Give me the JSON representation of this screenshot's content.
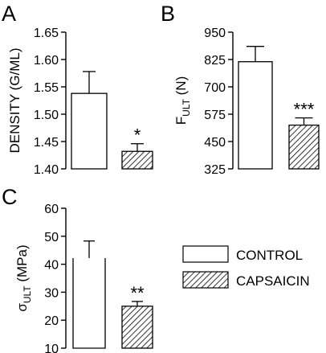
{
  "chart_data": [
    {
      "type": "bar",
      "panel": "A",
      "ylabel": "DENSITY (G/ML)",
      "ylim": [
        1.4,
        1.65
      ],
      "yticks": [
        "1.40",
        "1.45",
        "1.50",
        "1.55",
        "1.60",
        "1.65"
      ],
      "categories": [
        "CONTROL",
        "CAPSAICIN"
      ],
      "values": [
        1.538,
        1.432
      ],
      "errors": [
        0.04,
        0.014
      ],
      "significance": [
        "",
        "*"
      ]
    },
    {
      "type": "bar",
      "panel": "B",
      "ylabel_main": "F",
      "ylabel_sub": "ULT",
      "ylabel_unit": " (N)",
      "ylim": [
        325,
        950
      ],
      "yticks": [
        "325",
        "450",
        "575",
        "700",
        "825",
        "950"
      ],
      "categories": [
        "CONTROL",
        "CAPSAICIN"
      ],
      "values": [
        815,
        525
      ],
      "errors": [
        70,
        33
      ],
      "significance": [
        "",
        "***"
      ]
    },
    {
      "type": "bar",
      "panel": "C",
      "ylabel_main": "σ",
      "ylabel_sub": "ULT",
      "ylabel_unit": " (MPa)",
      "ylim": [
        10,
        60
      ],
      "yticks": [
        "10",
        "20",
        "30",
        "40",
        "50",
        "60"
      ],
      "categories": [
        "CONTROL",
        "CAPSAICIN"
      ],
      "values": [
        42.2,
        25.0
      ],
      "errors": [
        6.1,
        1.7
      ],
      "significance": [
        "",
        "**"
      ]
    }
  ],
  "legend": {
    "placement": "right",
    "entries": [
      {
        "label": "CONTROL",
        "fill": "open"
      },
      {
        "label": "CAPSAICIN",
        "fill": "hatched"
      }
    ]
  }
}
